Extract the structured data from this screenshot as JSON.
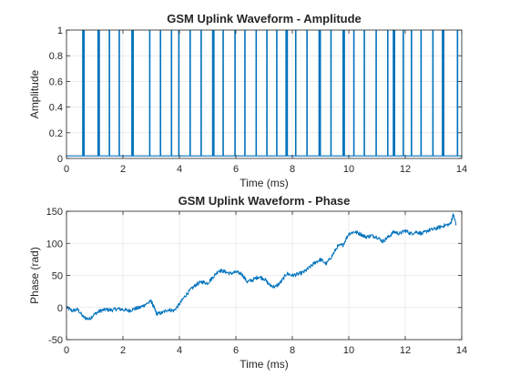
{
  "chart_data": [
    {
      "type": "line",
      "title": "GSM Uplink Waveform - Amplitude",
      "xlabel": "Time (ms)",
      "ylabel": "Amplitude",
      "xlim": [
        0,
        14
      ],
      "ylim": [
        0,
        1
      ],
      "xticks": [
        0,
        2,
        4,
        6,
        8,
        10,
        12,
        14
      ],
      "xtick_labels": [
        "0",
        "2",
        "4",
        "6",
        "8",
        "10",
        "12",
        "14"
      ],
      "yticks": [
        0,
        0.2,
        0.4,
        0.6,
        0.8,
        1
      ],
      "ytick_labels": [
        "0",
        "0.2",
        "0.4",
        "0.6",
        "0.8",
        "1"
      ],
      "grid": true,
      "series": [
        {
          "color": "#0072BD",
          "baseline": 0.02,
          "x_spikes": [
            0.58,
            0.62,
            1.12,
            1.16,
            1.52,
            1.87,
            2.32,
            2.36,
            2.95,
            3.33,
            3.72,
            3.98,
            4.38,
            4.77,
            5.18,
            5.22,
            5.55,
            5.97,
            6.32,
            6.72,
            7.1,
            7.45,
            7.78,
            7.82,
            8.12,
            8.52,
            8.95,
            8.99,
            9.37,
            9.8,
            9.84,
            10.18,
            10.55,
            10.97,
            11.38,
            11.58,
            11.62,
            11.93,
            12.22,
            12.56,
            12.98,
            13.32,
            13.36,
            13.85
          ],
          "y_spikes": [
            1,
            1,
            1,
            1,
            1,
            1,
            1,
            1,
            1,
            1,
            1,
            1,
            1,
            1,
            1,
            1,
            1,
            1,
            1,
            1,
            1,
            1,
            1,
            1,
            1,
            1,
            1,
            1,
            1,
            1,
            1,
            1,
            1,
            1,
            1,
            1,
            1,
            1,
            1,
            1,
            1,
            1,
            1,
            1
          ]
        }
      ]
    },
    {
      "type": "line",
      "title": "GSM Uplink Waveform - Phase",
      "xlabel": "Time (ms)",
      "ylabel": "Phase (rad)",
      "xlim": [
        0,
        14
      ],
      "ylim": [
        -50,
        150
      ],
      "xticks": [
        0,
        2,
        4,
        6,
        8,
        10,
        12,
        14
      ],
      "xtick_labels": [
        "0",
        "2",
        "4",
        "6",
        "8",
        "10",
        "12",
        "14"
      ],
      "yticks": [
        -50,
        0,
        50,
        100,
        150
      ],
      "ytick_labels": [
        "-50",
        "0",
        "50",
        "100",
        "150"
      ],
      "grid": true,
      "series": [
        {
          "color": "#0072BD",
          "x": [
            0,
            0.2,
            0.4,
            0.6,
            0.8,
            1.0,
            1.2,
            1.4,
            1.6,
            1.8,
            2.0,
            2.2,
            2.4,
            2.6,
            2.8,
            3.0,
            3.1,
            3.2,
            3.4,
            3.6,
            3.8,
            4.0,
            4.2,
            4.4,
            4.6,
            4.8,
            5.0,
            5.2,
            5.4,
            5.6,
            5.8,
            6.0,
            6.2,
            6.4,
            6.6,
            6.8,
            7.0,
            7.2,
            7.4,
            7.6,
            7.8,
            8.0,
            8.2,
            8.4,
            8.6,
            8.8,
            9.0,
            9.2,
            9.4,
            9.6,
            9.8,
            10.0,
            10.2,
            10.4,
            10.6,
            10.8,
            11.0,
            11.2,
            11.4,
            11.6,
            11.8,
            12.0,
            12.2,
            12.4,
            12.6,
            12.8,
            13.0,
            13.2,
            13.4,
            13.6,
            13.7,
            13.8
          ],
          "y": [
            0,
            -5,
            -3,
            -15,
            -18,
            -10,
            -5,
            -3,
            -4,
            -2,
            -3,
            -5,
            -2,
            0,
            5,
            10,
            0,
            -10,
            -8,
            -3,
            -5,
            5,
            18,
            28,
            36,
            40,
            38,
            48,
            58,
            56,
            53,
            55,
            53,
            40,
            43,
            48,
            45,
            35,
            32,
            40,
            53,
            50,
            52,
            55,
            62,
            70,
            75,
            68,
            80,
            95,
            98,
            115,
            118,
            115,
            110,
            112,
            110,
            103,
            110,
            118,
            115,
            120,
            115,
            118,
            115,
            120,
            122,
            125,
            128,
            130,
            145,
            130
          ]
        }
      ]
    }
  ]
}
